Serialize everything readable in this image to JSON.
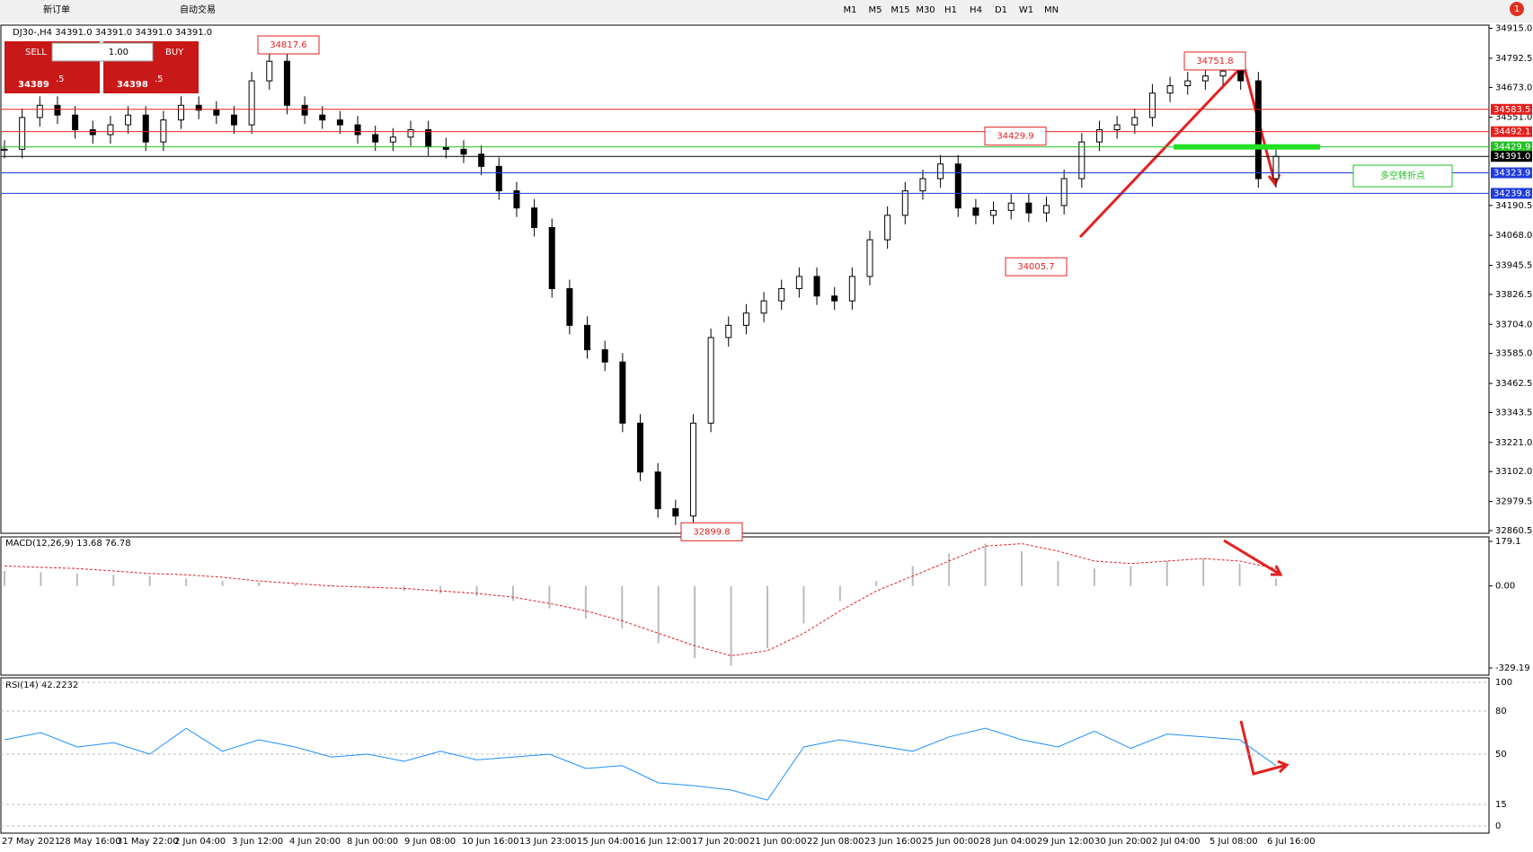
{
  "toolbar": {
    "new_order": "新订单",
    "auto_trading": "自动交易",
    "timeframes": [
      "M1",
      "M5",
      "M15",
      "M30",
      "H1",
      "H4",
      "D1",
      "W1",
      "MN"
    ],
    "notifications": "1"
  },
  "chart_header": "DJ30-,H4  34391.0 34391.0 34391.0 34391.0",
  "order_panel": {
    "sell": "SELL",
    "buy": "BUY",
    "volume": "1.00",
    "sell_price": "34389",
    "sell_pip": ".5",
    "buy_price": "34398",
    "buy_pip": ".5"
  },
  "chart_data": {
    "type": "candlestick",
    "categories": [
      "27 May 2021",
      "28 May 16:00",
      "31 May 22:00",
      "2 Jun 04:00",
      "3 Jun 12:00",
      "4 Jun 20:00",
      "8 Jun 00:00",
      "9 Jun 08:00",
      "10 Jun 16:00",
      "13 Jun 23:00",
      "15 Jun 04:00",
      "16 Jun 12:00",
      "17 Jun 20:00",
      "21 Jun 00:00",
      "22 Jun 08:00",
      "23 Jun 16:00",
      "25 Jun 00:00",
      "28 Jun 04:00",
      "29 Jun 12:00",
      "30 Jun 20:00",
      "2 Jul 04:00",
      "5 Jul 08:00",
      "6 Jul 16:00"
    ],
    "closes": [
      34420,
      34550,
      34600,
      34560,
      34500,
      34480,
      34520,
      34560,
      34450,
      34540,
      34600,
      34580,
      34560,
      34520,
      34700,
      34780,
      34600,
      34560,
      34540,
      34520,
      34480,
      34450,
      34470,
      34500,
      34430,
      34420,
      34400,
      34350,
      34250,
      34180,
      34100,
      33850,
      33700,
      33600,
      33550,
      33300,
      33100,
      32950,
      32920,
      33300,
      33650,
      33700,
      33750,
      33800,
      33850,
      33900,
      33820,
      33800,
      33900,
      34050,
      34150,
      34250,
      34300,
      34360,
      34180,
      34150,
      34170,
      34200,
      34160,
      34190,
      34300,
      34450,
      34500,
      34520,
      34550,
      34650,
      34680,
      34700,
      34720,
      34740,
      34700,
      34300,
      34391
    ],
    "ylim": [
      32860.5,
      34915.0
    ],
    "yticks": [
      {
        "value": 34915,
        "label": "34915.0"
      },
      34792.5,
      {
        "value": 34673,
        "label": "34673.0"
      },
      {
        "value": 34551,
        "label": "34551.0"
      },
      34190.5,
      {
        "value": 34068,
        "label": "34068.0"
      },
      33945.5,
      33826.5,
      {
        "value": 33704,
        "label": "33704.0"
      },
      {
        "value": 33585,
        "label": "33585.0"
      },
      33462.5,
      33343.5,
      {
        "value": 33221,
        "label": "33221.0"
      },
      {
        "value": 33102,
        "label": "33102.0"
      },
      32979.5,
      32860.5
    ],
    "levels": [
      {
        "value": 34583.5,
        "color": "#e52020"
      },
      {
        "value": 34492.1,
        "color": "#e52020"
      },
      {
        "value": 34429.9,
        "color": "#22c022"
      },
      {
        "value": 34391.0,
        "label": "34391.0",
        "color": "#000000"
      },
      {
        "value": 34323.9,
        "color": "#1e3cd8"
      },
      {
        "value": 34239.8,
        "color": "#1e3cd8"
      }
    ],
    "annotations": [
      34817.6,
      34751.8,
      34429.9,
      34005.7,
      32899.8
    ],
    "note": "多空转折点",
    "macd": {
      "label": "MACD(12,26,9) 13.68 76.78",
      "ylim": [
        -329.19,
        179.1
      ],
      "yticks": [
        179.1,
        {
          "value": 0,
          "label": "0.00"
        },
        -329.19
      ],
      "histogram": [
        60,
        55,
        50,
        45,
        40,
        30,
        20,
        15,
        10,
        5,
        -10,
        -20,
        -30,
        -40,
        -60,
        -90,
        -130,
        -170,
        -230,
        -290,
        -320,
        -250,
        -150,
        -60,
        20,
        80,
        130,
        170,
        140,
        100,
        70,
        80,
        100,
        110,
        90,
        30
      ],
      "signal": [
        80,
        75,
        70,
        60,
        50,
        45,
        35,
        20,
        10,
        0,
        -5,
        -10,
        -20,
        -30,
        -45,
        -70,
        -100,
        -140,
        -190,
        -240,
        -280,
        -260,
        -190,
        -100,
        -20,
        40,
        100,
        160,
        170,
        140,
        100,
        90,
        100,
        110,
        100,
        70
      ]
    },
    "rsi": {
      "label": "RSI(14) 42.2232",
      "ylim": [
        0,
        100
      ],
      "yticks": [
        100,
        80,
        50,
        15,
        0
      ],
      "values": [
        60,
        65,
        55,
        58,
        50,
        68,
        52,
        60,
        55,
        48,
        50,
        45,
        52,
        46,
        48,
        50,
        40,
        42,
        30,
        28,
        25,
        18,
        55,
        60,
        56,
        52,
        62,
        68,
        60,
        55,
        66,
        54,
        64,
        62,
        60,
        42
      ]
    }
  }
}
